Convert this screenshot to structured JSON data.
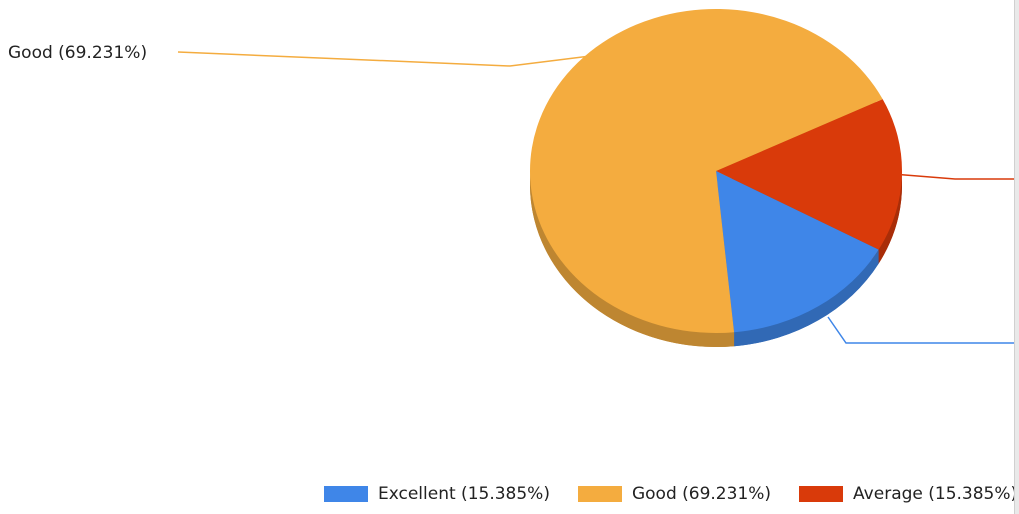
{
  "chart_data": {
    "type": "pie",
    "categories": [
      "Excellent",
      "Good",
      "Average"
    ],
    "values": [
      15.385,
      69.231,
      15.385
    ],
    "unit": "%",
    "colors": [
      "#3F86E8",
      "#F4AC3F",
      "#D93A0A"
    ],
    "slice_labels": [
      "",
      "Good (69.231%)",
      ""
    ],
    "legend": [
      {
        "label": "Excellent (15.385%)",
        "color": "#3F86E8"
      },
      {
        "label": "Good (69.231%)",
        "color": "#F4AC3F"
      },
      {
        "label": "Average (15.385%)",
        "color": "#D93A0A"
      }
    ],
    "legend_position": "bottom",
    "title": ""
  }
}
